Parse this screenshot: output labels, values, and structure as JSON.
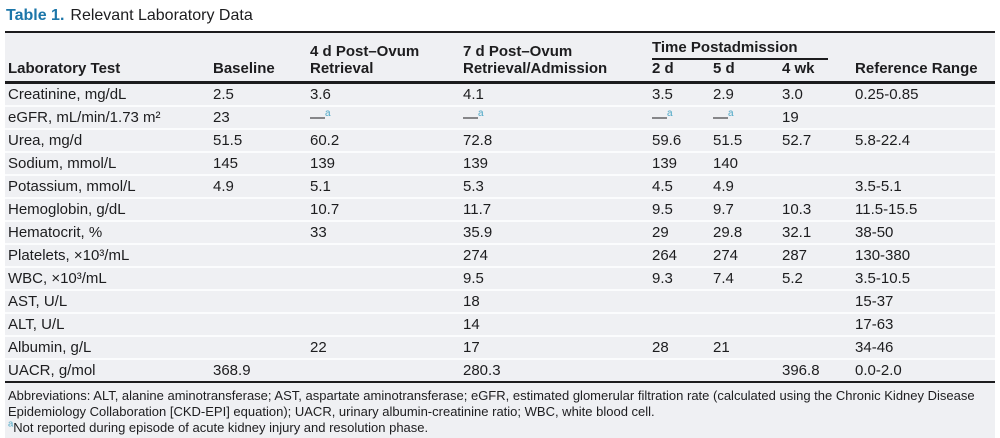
{
  "title": {
    "label": "Table 1.",
    "text": "Relevant Laboratory Data"
  },
  "colors": {
    "accent_blue": "#1C76A9",
    "footnote_teal": "#4FA8C6",
    "table_background": "#EFF0F3",
    "rule_black": "#1C1C1E"
  },
  "table": {
    "headers": {
      "col1": "Laboratory Test",
      "col2": "Baseline",
      "col3": "4 d Post–Ovum Retrieval",
      "col4": "7 d Post–Ovum Retrieval/Admission",
      "group": "Time Postadmission",
      "sub1": "2 d",
      "sub2": "5 d",
      "sub3": "4 wk",
      "col8": "Reference Range"
    },
    "rows": [
      {
        "cells": [
          "Creatinine, mg/dL",
          "2.5",
          "3.6",
          "4.1",
          "3.5",
          "2.9",
          "3.0",
          "0.25-0.85"
        ]
      },
      {
        "cells": [
          "eGFR, mL/min/1.73 m²",
          "23",
          "—ᵃ",
          "—ᵃ",
          "—ᵃ",
          "—ᵃ",
          "19",
          ""
        ]
      },
      {
        "cells": [
          "Urea, mg/d",
          "51.5",
          "60.2",
          "72.8",
          "59.6",
          "51.5",
          "52.7",
          "5.8-22.4"
        ]
      },
      {
        "cells": [
          "Sodium, mmol/L",
          "145",
          "139",
          "139",
          "139",
          "140",
          "",
          ""
        ]
      },
      {
        "cells": [
          "Potassium, mmol/L",
          "4.9",
          "5.1",
          "5.3",
          "4.5",
          "4.9",
          "",
          "3.5-5.1"
        ]
      },
      {
        "cells": [
          "Hemoglobin, g/dL",
          "",
          "10.7",
          "11.7",
          "9.5",
          "9.7",
          "10.3",
          "11.5-15.5"
        ]
      },
      {
        "cells": [
          "Hematocrit, %",
          "",
          "33",
          "35.9",
          "29",
          "29.8",
          "32.1",
          "38-50"
        ]
      },
      {
        "cells": [
          "Platelets, ×10³/mL",
          "",
          "",
          "274",
          "264",
          "274",
          "287",
          "130-380"
        ]
      },
      {
        "cells": [
          "WBC, ×10³/mL",
          "",
          "",
          "9.5",
          "9.3",
          "7.4",
          "5.2",
          "3.5-10.5"
        ]
      },
      {
        "cells": [
          "AST, U/L",
          "",
          "",
          "18",
          "",
          "",
          "",
          "15-37"
        ]
      },
      {
        "cells": [
          "ALT, U/L",
          "",
          "",
          "14",
          "",
          "",
          "",
          "17-63"
        ]
      },
      {
        "cells": [
          "Albumin, g/L",
          "",
          "22",
          "17",
          "28",
          "21",
          "",
          "34-46"
        ]
      },
      {
        "cells": [
          "UACR, g/mol",
          "368.9",
          "",
          "280.3",
          "",
          "",
          "396.8",
          "0.0-2.0"
        ]
      }
    ]
  },
  "footer": {
    "abbreviations": "Abbreviations: ALT, alanine aminotransferase; AST, aspartate aminotransferase; eGFR, estimated glomerular filtration rate (calculated using the Chronic Kidney Disease Epidemiology Collaboration [CKD-EPI] equation); UACR, urinary albumin-creatinine ratio; WBC, white blood cell.",
    "note_marker": "a",
    "note": "Not reported during episode of acute kidney injury and resolution phase."
  }
}
